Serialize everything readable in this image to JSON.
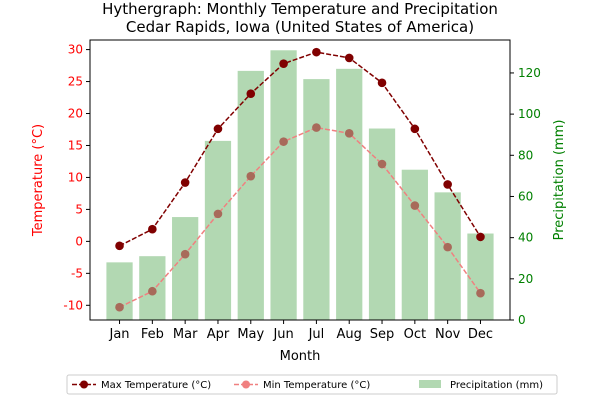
{
  "chart_data": {
    "type": "bar",
    "title": "Hythergraph: Monthly Temperature and Precipitation",
    "subtitle": "Cedar Rapids, Iowa (United States of America)",
    "xlabel": "Month",
    "ylabel_left": "Temperature (°C)",
    "ylabel_right": "Precipitation (mm)",
    "categories": [
      "Jan",
      "Feb",
      "Mar",
      "Apr",
      "May",
      "Jun",
      "Jul",
      "Aug",
      "Sep",
      "Oct",
      "Nov",
      "Dec"
    ],
    "ylim_left": [
      -12.3,
      31.5
    ],
    "ylim_right": [
      0,
      136
    ],
    "yticks_left": [
      -10,
      -5,
      0,
      5,
      10,
      15,
      20,
      25,
      30
    ],
    "yticks_right": [
      0,
      20,
      40,
      60,
      80,
      100,
      120
    ],
    "legend_position": "bottom-center",
    "colors": {
      "max_temp": "#800000",
      "min_temp": "#f08080",
      "min_temp_marker": "#a86a5a",
      "precip": "#b2d8b2",
      "left_axis": "#ff0000",
      "right_axis": "#008000"
    },
    "series": [
      {
        "name": "Max Temperature (°C)",
        "type": "line",
        "axis": "left",
        "values": [
          -0.7,
          1.9,
          9.2,
          17.6,
          23.1,
          27.8,
          29.6,
          28.7,
          24.8,
          17.6,
          8.9,
          0.7
        ]
      },
      {
        "name": "Min Temperature (°C)",
        "type": "line",
        "axis": "left",
        "values": [
          -10.3,
          -7.8,
          -2.0,
          4.3,
          10.2,
          15.6,
          17.8,
          16.9,
          12.1,
          5.6,
          -0.9,
          -8.1
        ]
      },
      {
        "name": "Precipitation (mm)",
        "type": "bar",
        "axis": "right",
        "values": [
          28,
          31,
          50,
          87,
          121,
          131,
          117,
          122,
          93,
          73,
          62,
          42
        ]
      }
    ]
  }
}
